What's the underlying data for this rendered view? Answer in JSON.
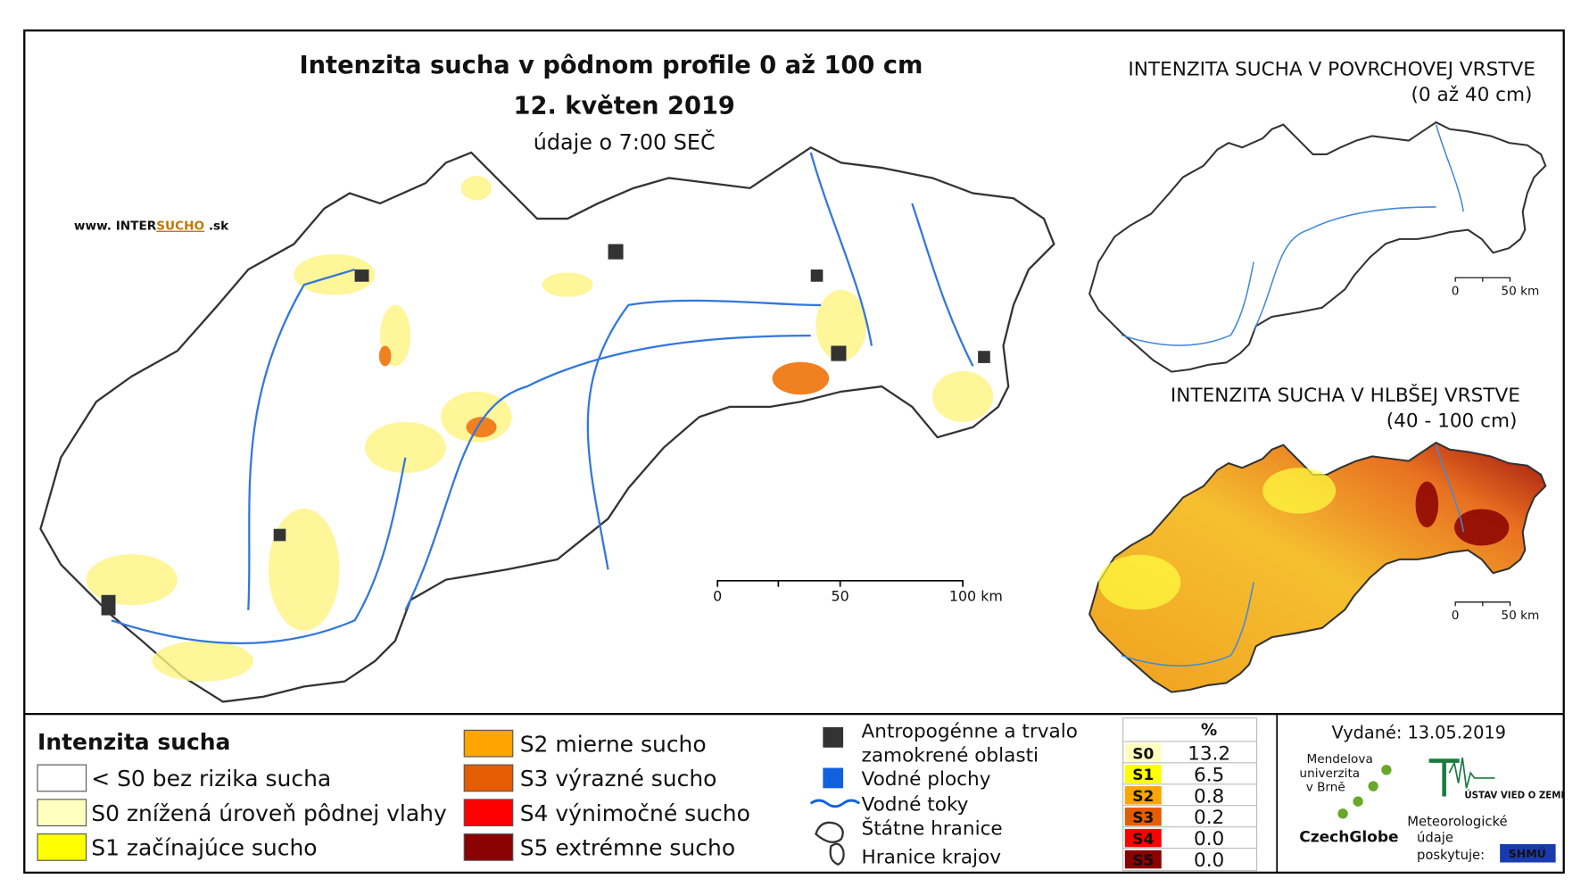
{
  "main_map": {
    "title": "Intenzita sucha v pôdnom profile 0 až 100 cm",
    "date": "12. květen 2019",
    "note": "údaje o 7:00 SEČ",
    "website_prefix": "www. INTER",
    "website_brand": "SUCHO",
    "website_suffix": " .sk",
    "scale": [
      "0",
      "50",
      "100 km"
    ]
  },
  "inset_surface": {
    "title": "INTENZITA SUCHA V POVRCHOVEJ VRSTVE",
    "subtitle": "(0 až 40 cm)",
    "scale": [
      "0",
      "50 km"
    ]
  },
  "inset_deep": {
    "title": "INTENZITA SUCHA V HLBŠEJ VRSTVE",
    "subtitle": "(40 - 100 cm)",
    "scale": [
      "0",
      "50 km"
    ]
  },
  "legend": {
    "title": "Intenzita sucha",
    "classes": [
      {
        "label": "< S0 bez rizika sucha",
        "color": "#ffffff"
      },
      {
        "label": "S0 znížená úroveň pôdnej vlahy",
        "color": "#ffffc0"
      },
      {
        "label": "S1 začínajúce sucho",
        "color": "#ffff00"
      },
      {
        "label": "S2 mierne sucho",
        "color": "#ffa500"
      },
      {
        "label": "S3 výrazné sucho",
        "color": "#e65c00"
      },
      {
        "label": "S4 výnimočné sucho",
        "color": "#ff0000"
      },
      {
        "label": "S5 extrémne sucho",
        "color": "#8b0000"
      }
    ]
  },
  "layers": [
    {
      "label": "Antropogénne a trvalo zamokrené oblasti"
    },
    {
      "label": "Vodné plochy"
    },
    {
      "label": "Vodné toky"
    },
    {
      "label": "Štátne hranice"
    },
    {
      "label": "Hranice krajov"
    }
  ],
  "table": {
    "header": "%",
    "rows": [
      [
        "S0",
        "13.2"
      ],
      [
        "S1",
        "6.5"
      ],
      [
        "S2",
        "0.8"
      ],
      [
        "S3",
        "0.2"
      ],
      [
        "S4",
        "0.0"
      ],
      [
        "S5",
        "0.0"
      ]
    ]
  },
  "issued": "Vydané: 13.05.2019",
  "credits": {
    "mendel": [
      "Mendelova",
      "univerzita",
      "v Brně"
    ],
    "czechglobe": "CzechGlobe",
    "uvzt": "ÚSTAV VIED O ZEMI",
    "shmu_note": [
      "Meteorologické",
      "údaje",
      "poskytuje:"
    ],
    "shmu": "SHMÚ"
  }
}
